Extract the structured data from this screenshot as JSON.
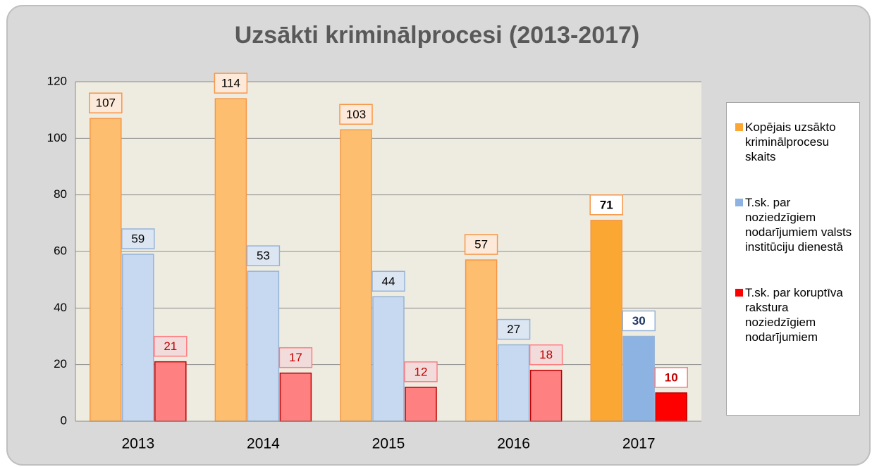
{
  "chart_data": {
    "type": "bar",
    "title": "Uzsākti kriminālprocesi (2013-2017)",
    "categories": [
      "2013",
      "2014",
      "2015",
      "2016",
      "2017"
    ],
    "series": [
      {
        "name": "Kopējais uzsākto kriminālprocesu skaits",
        "color": "#fdbf6f",
        "colors": [
          "#fdbf6f",
          "#fdbf6f",
          "#fdbf6f",
          "#fdbf6f",
          "#fba733"
        ],
        "values": [
          107,
          114,
          103,
          57,
          71
        ]
      },
      {
        "name": "T.sk. par noziedzīgiem nodarījumiem valsts institūciju dienestā",
        "color": "#c6d9f1",
        "colors": [
          "#c6d9f1",
          "#c6d9f1",
          "#c6d9f1",
          "#c6d9f1",
          "#8db3e2"
        ],
        "values": [
          59,
          53,
          44,
          27,
          30
        ]
      },
      {
        "name": "T.sk. par koruptīva rakstura noziedzīgiem nodarījumiem",
        "color": "#ff8080",
        "colors": [
          "#ff8080",
          "#ff8080",
          "#ff8080",
          "#ff8080",
          "#ff0000"
        ],
        "values": [
          21,
          17,
          12,
          18,
          10
        ]
      }
    ],
    "ylim": [
      0,
      120
    ],
    "yticks": [
      0,
      20,
      40,
      60,
      80,
      100,
      120
    ],
    "grid": true,
    "legend": "right"
  }
}
